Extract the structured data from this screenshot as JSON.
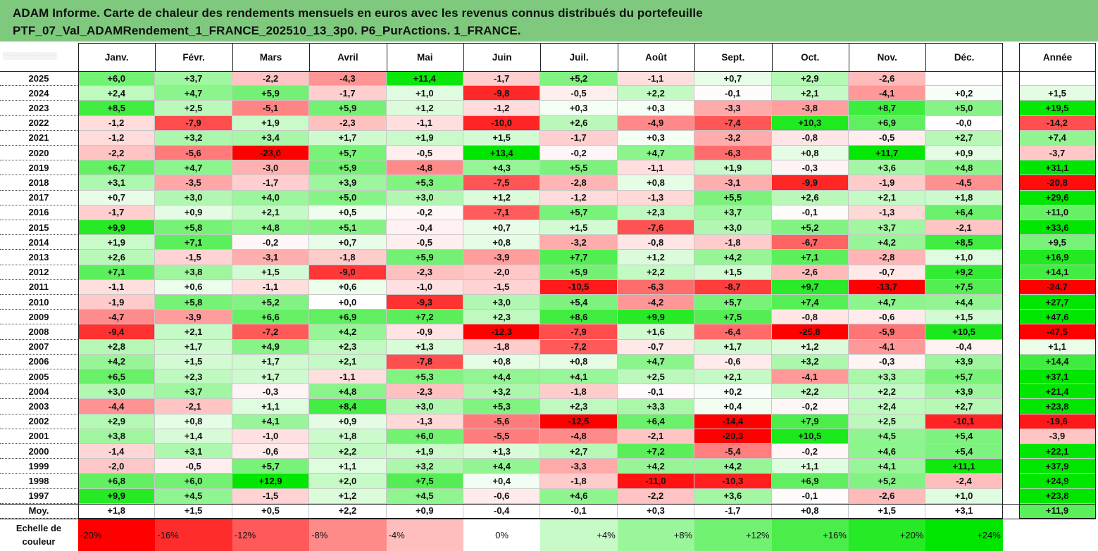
{
  "title": {
    "line1": "ADAM Informe. Carte de chaleur des rendements mensuels en euros avec les revenus connus distribués du portefeuille",
    "line2": "PTF_07_Val_ADAMRendement_1_FRANCE_202510_13_3p0. P6_PurActions. 1_FRANCE."
  },
  "chart_data": {
    "type": "heatmap",
    "columns": [
      "Janv.",
      "Févr.",
      "Mars",
      "Avril",
      "Mai",
      "Juin",
      "Juil.",
      "Août",
      "Sept.",
      "Oct.",
      "Nov.",
      "Déc."
    ],
    "annual_label": "Année",
    "rows": [
      {
        "year": "2025",
        "values": [
          "+6,0",
          "+3,7",
          "-2,2",
          "-4,3",
          "+11,4",
          "-1,7",
          "+5,2",
          "-1,1",
          "+0,7",
          "+2,9",
          "-2,6",
          ""
        ],
        "annual": ""
      },
      {
        "year": "2024",
        "values": [
          "+2,4",
          "+4,7",
          "+5,9",
          "-1,7",
          "+1,0",
          "-9,8",
          "-0,5",
          "+2,2",
          "-0,1",
          "+2,1",
          "-4,1",
          "+0,2"
        ],
        "annual": "+1,5"
      },
      {
        "year": "2023",
        "values": [
          "+8,5",
          "+2,5",
          "-5,1",
          "+5,9",
          "+1,2",
          "-1,2",
          "+0,3",
          "+0,3",
          "-3,3",
          "-3,8",
          "+8,7",
          "+5,0"
        ],
        "annual": "+19,5"
      },
      {
        "year": "2022",
        "values": [
          "-1,2",
          "-7,9",
          "+1,9",
          "-2,3",
          "-1,1",
          "-10,0",
          "+2,6",
          "-4,9",
          "-7,4",
          "+10,3",
          "+6,9",
          "-0,0"
        ],
        "annual": "-14,2"
      },
      {
        "year": "2021",
        "values": [
          "-1,2",
          "+3,2",
          "+3,4",
          "+1,7",
          "+1,9",
          "+1,5",
          "-1,7",
          "+0,3",
          "-3,2",
          "-0,8",
          "-0,5",
          "+2,7"
        ],
        "annual": "+7,4"
      },
      {
        "year": "2020",
        "values": [
          "-2,2",
          "-5,6",
          "-23,0",
          "+5,7",
          "-0,5",
          "+13,4",
          "-0,2",
          "+4,7",
          "-6,3",
          "+0,8",
          "+11,7",
          "+0,9"
        ],
        "annual": "-3,7"
      },
      {
        "year": "2019",
        "values": [
          "+6,7",
          "+4,7",
          "-3,0",
          "+5,9",
          "-4,8",
          "+4,3",
          "+5,5",
          "-1,1",
          "+1,9",
          "-0,3",
          "+3,6",
          "+4,8"
        ],
        "annual": "+31,1"
      },
      {
        "year": "2018",
        "values": [
          "+3,1",
          "-3,5",
          "-1,7",
          "+3,9",
          "+5,3",
          "-7,5",
          "-2,8",
          "+0,8",
          "-3,1",
          "-9,9",
          "-1,9",
          "-4,5"
        ],
        "annual": "-20,8"
      },
      {
        "year": "2017",
        "values": [
          "+0,7",
          "+3,0",
          "+4,0",
          "+5,0",
          "+3,0",
          "+1,2",
          "-1,2",
          "-1,3",
          "+5,5",
          "+2,6",
          "+2,1",
          "+1,8"
        ],
        "annual": "+29,6"
      },
      {
        "year": "2016",
        "values": [
          "-1,7",
          "+0,9",
          "+2,1",
          "+0,5",
          "-0,2",
          "-7,1",
          "+5,7",
          "+2,3",
          "+3,7",
          "-0,1",
          "-1,3",
          "+6,4"
        ],
        "annual": "+11,0"
      },
      {
        "year": "2015",
        "values": [
          "+9,9",
          "+5,8",
          "+4,8",
          "+5,1",
          "-0,4",
          "+0,7",
          "+1,5",
          "-7,6",
          "+3,0",
          "+5,2",
          "+3,7",
          "-2,1"
        ],
        "annual": "+33,6"
      },
      {
        "year": "2014",
        "values": [
          "+1,9",
          "+7,1",
          "-0,2",
          "+0,7",
          "-0,5",
          "+0,8",
          "-3,2",
          "-0,8",
          "-1,8",
          "-6,7",
          "+4,2",
          "+8,5"
        ],
        "annual": "+9,5"
      },
      {
        "year": "2013",
        "values": [
          "+2,6",
          "-1,5",
          "-3,1",
          "-1,8",
          "+5,9",
          "-3,9",
          "+7,7",
          "+1,2",
          "+4,2",
          "+7,1",
          "-2,8",
          "+1,0"
        ],
        "annual": "+16,9"
      },
      {
        "year": "2012",
        "values": [
          "+7,1",
          "+3,8",
          "+1,5",
          "-9,0",
          "-2,3",
          "-2,0",
          "+5,9",
          "+2,2",
          "+1,5",
          "-2,6",
          "-0,7",
          "+9,2"
        ],
        "annual": "+14,1"
      },
      {
        "year": "2011",
        "values": [
          "-1,1",
          "+0,6",
          "-1,1",
          "+0,6",
          "-1,0",
          "-1,5",
          "-10,5",
          "-6,3",
          "-8,7",
          "+9,7",
          "-13,7",
          "+7,5"
        ],
        "annual": "-24,7"
      },
      {
        "year": "2010",
        "values": [
          "-1,9",
          "+5,8",
          "+5,2",
          "+0,0",
          "-9,3",
          "+3,0",
          "+5,4",
          "-4,2",
          "+5,7",
          "+7,4",
          "+4,7",
          "+4,4"
        ],
        "annual": "+27,7"
      },
      {
        "year": "2009",
        "values": [
          "-4,7",
          "-3,9",
          "+6,6",
          "+6,9",
          "+7,2",
          "+2,3",
          "+8,6",
          "+9,9",
          "+7,5",
          "-0,8",
          "-0,6",
          "+1,5"
        ],
        "annual": "+47,6"
      },
      {
        "year": "2008",
        "values": [
          "-9,4",
          "+2,1",
          "-7,2",
          "+4,2",
          "-0,9",
          "-12,3",
          "-7,9",
          "+1,6",
          "-6,4",
          "-25,8",
          "-5,9",
          "+10,5"
        ],
        "annual": "-47,5"
      },
      {
        "year": "2007",
        "values": [
          "+2,8",
          "+1,7",
          "+4,9",
          "+2,3",
          "+1,3",
          "-1,8",
          "-7,2",
          "-0,7",
          "+1,7",
          "+1,2",
          "-4,1",
          "-0,4"
        ],
        "annual": "+1,1"
      },
      {
        "year": "2006",
        "values": [
          "+4,2",
          "+1,5",
          "+1,7",
          "+2,1",
          "-7,8",
          "+0,8",
          "+0,8",
          "+4,7",
          "-0,6",
          "+3,2",
          "-0,3",
          "+3,9"
        ],
        "annual": "+14,4"
      },
      {
        "year": "2005",
        "values": [
          "+6,5",
          "+2,3",
          "+1,7",
          "-1,1",
          "+5,3",
          "+4,4",
          "+4,1",
          "+2,5",
          "+2,1",
          "-4,1",
          "+3,3",
          "+5,7"
        ],
        "annual": "+37,1"
      },
      {
        "year": "2004",
        "values": [
          "+3,0",
          "+3,7",
          "-0,3",
          "+4,8",
          "-2,3",
          "+3,2",
          "-1,8",
          "-0,1",
          "+0,2",
          "+2,2",
          "+2,2",
          "+3,9"
        ],
        "annual": "+21,4"
      },
      {
        "year": "2003",
        "values": [
          "-4,4",
          "-2,1",
          "+1,1",
          "+8,4",
          "+3,0",
          "+5,3",
          "+2,3",
          "+3,3",
          "+0,4",
          "-0,2",
          "+2,4",
          "+2,7"
        ],
        "annual": "+23,8"
      },
      {
        "year": "2002",
        "values": [
          "+2,9",
          "+0,8",
          "+4,1",
          "+0,9",
          "-1,3",
          "-5,6",
          "-12,5",
          "+6,4",
          "-14,4",
          "+7,9",
          "+2,5",
          "-10,1"
        ],
        "annual": "-19,6"
      },
      {
        "year": "2001",
        "values": [
          "+3,8",
          "+1,4",
          "-1,0",
          "+1,8",
          "+6,0",
          "-5,5",
          "-4,8",
          "-2,1",
          "-20,3",
          "+10,5",
          "+4,5",
          "+5,4"
        ],
        "annual": "-3,9"
      },
      {
        "year": "2000",
        "values": [
          "-1,4",
          "+3,1",
          "-0,6",
          "+2,2",
          "+1,9",
          "+1,3",
          "+2,7",
          "+7,2",
          "-5,4",
          "-0,2",
          "+4,6",
          "+5,4"
        ],
        "annual": "+22,1"
      },
      {
        "year": "1999",
        "values": [
          "-2,0",
          "-0,5",
          "+5,7",
          "+1,1",
          "+3,2",
          "+4,4",
          "-3,3",
          "+4,2",
          "+4,2",
          "+1,1",
          "+4,1",
          "+11,1"
        ],
        "annual": "+37,9"
      },
      {
        "year": "1998",
        "values": [
          "+6,8",
          "+6,0",
          "+12,9",
          "+2,0",
          "+7,5",
          "+0,4",
          "-1,8",
          "-11,0",
          "-10,3",
          "+6,9",
          "+5,2",
          "-2,4"
        ],
        "annual": "+24,9"
      },
      {
        "year": "1997",
        "values": [
          "+9,9",
          "+4,5",
          "-1,5",
          "+1,2",
          "+4,5",
          "-0,6",
          "+4,6",
          "-2,2",
          "+3,6",
          "-0,1",
          "-2,6",
          "+1,0"
        ],
        "annual": "+23,8"
      }
    ],
    "average": {
      "label": "Moy.",
      "values": [
        "+1,8",
        "+1,5",
        "+0,5",
        "+2,2",
        "+0,9",
        "-0,4",
        "-0,1",
        "+0,3",
        "-1,7",
        "+0,8",
        "+1,5",
        "+3,1"
      ],
      "annual": "+11,9"
    },
    "color_scale": {
      "label_line1": "Echelle de",
      "label_line2": "couleur",
      "steps": [
        "-20%",
        "-16%",
        "-12%",
        "-8%",
        "-4%",
        "0%",
        "+4%",
        "+8%",
        "+12%",
        "+16%",
        "+20%",
        "+24%"
      ],
      "negative_color": "#ff0000",
      "neutral_color": "#ffffff",
      "positive_color": "#00e600"
    }
  }
}
